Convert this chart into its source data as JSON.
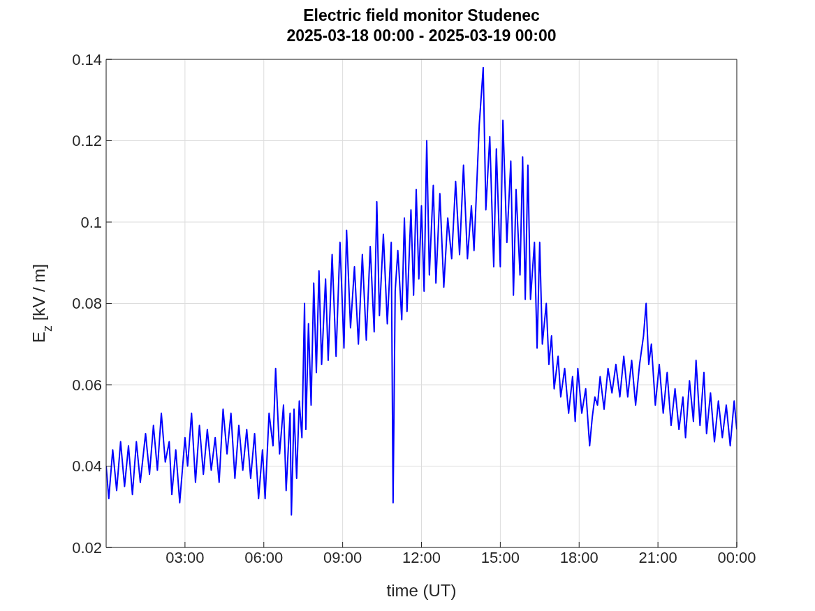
{
  "chart_data": {
    "type": "line",
    "title": "Electric field monitor Studenec",
    "subtitle": "2025-03-18 00:00 - 2025-03-19 00:00",
    "xlabel": "time (UT)",
    "ylabel": "E$_{z}$ [kV / m]",
    "x": [
      0.0,
      0.1,
      0.25,
      0.4,
      0.55,
      0.7,
      0.85,
      1.0,
      1.15,
      1.3,
      1.5,
      1.65,
      1.8,
      1.95,
      2.1,
      2.25,
      2.4,
      2.5,
      2.65,
      2.8,
      3.0,
      3.1,
      3.25,
      3.4,
      3.55,
      3.7,
      3.85,
      4.0,
      4.15,
      4.3,
      4.45,
      4.6,
      4.75,
      4.9,
      5.05,
      5.2,
      5.35,
      5.5,
      5.65,
      5.8,
      5.95,
      6.05,
      6.2,
      6.35,
      6.45,
      6.6,
      6.75,
      6.85,
      7.0,
      7.05,
      7.15,
      7.25,
      7.35,
      7.45,
      7.55,
      7.6,
      7.7,
      7.8,
      7.9,
      8.0,
      8.1,
      8.2,
      8.35,
      8.45,
      8.6,
      8.75,
      8.9,
      9.05,
      9.15,
      9.3,
      9.45,
      9.6,
      9.75,
      9.9,
      10.05,
      10.2,
      10.3,
      10.4,
      10.55,
      10.7,
      10.85,
      10.92,
      11.0,
      11.1,
      11.25,
      11.35,
      11.45,
      11.6,
      11.7,
      11.8,
      11.9,
      12.0,
      12.1,
      12.2,
      12.3,
      12.45,
      12.55,
      12.7,
      12.85,
      13.0,
      13.15,
      13.3,
      13.45,
      13.6,
      13.75,
      13.9,
      14.0,
      14.2,
      14.35,
      14.45,
      14.6,
      14.75,
      14.85,
      15.0,
      15.1,
      15.25,
      15.4,
      15.5,
      15.6,
      15.75,
      15.85,
      15.95,
      16.05,
      16.15,
      16.3,
      16.4,
      16.5,
      16.6,
      16.75,
      16.85,
      16.95,
      17.05,
      17.2,
      17.3,
      17.45,
      17.6,
      17.75,
      17.85,
      17.95,
      18.1,
      18.25,
      18.4,
      18.5,
      18.6,
      18.7,
      18.8,
      18.95,
      19.1,
      19.25,
      19.4,
      19.55,
      19.7,
      19.85,
      20.0,
      20.15,
      20.3,
      20.45,
      20.55,
      20.65,
      20.75,
      20.9,
      21.05,
      21.2,
      21.35,
      21.5,
      21.65,
      21.8,
      21.95,
      22.05,
      22.2,
      22.35,
      22.45,
      22.6,
      22.75,
      22.85,
      23.0,
      23.15,
      23.3,
      23.45,
      23.6,
      23.75,
      23.9,
      24.0
    ],
    "series": [
      {
        "color": "#0000ff",
        "values": [
          0.04,
          0.032,
          0.044,
          0.034,
          0.046,
          0.035,
          0.045,
          0.033,
          0.046,
          0.036,
          0.048,
          0.038,
          0.05,
          0.039,
          0.053,
          0.041,
          0.046,
          0.033,
          0.044,
          0.031,
          0.047,
          0.04,
          0.053,
          0.036,
          0.05,
          0.038,
          0.049,
          0.039,
          0.047,
          0.036,
          0.054,
          0.043,
          0.053,
          0.037,
          0.05,
          0.039,
          0.049,
          0.037,
          0.048,
          0.032,
          0.044,
          0.032,
          0.053,
          0.045,
          0.064,
          0.043,
          0.055,
          0.034,
          0.053,
          0.028,
          0.054,
          0.037,
          0.056,
          0.047,
          0.08,
          0.049,
          0.075,
          0.055,
          0.085,
          0.063,
          0.088,
          0.065,
          0.086,
          0.066,
          0.092,
          0.067,
          0.095,
          0.069,
          0.098,
          0.074,
          0.089,
          0.07,
          0.092,
          0.071,
          0.094,
          0.073,
          0.105,
          0.077,
          0.097,
          0.075,
          0.095,
          0.031,
          0.083,
          0.093,
          0.076,
          0.101,
          0.078,
          0.103,
          0.082,
          0.108,
          0.086,
          0.104,
          0.083,
          0.12,
          0.087,
          0.109,
          0.085,
          0.107,
          0.084,
          0.101,
          0.091,
          0.11,
          0.092,
          0.114,
          0.091,
          0.104,
          0.093,
          0.124,
          0.138,
          0.103,
          0.121,
          0.089,
          0.118,
          0.089,
          0.125,
          0.095,
          0.115,
          0.082,
          0.108,
          0.087,
          0.116,
          0.081,
          0.114,
          0.081,
          0.095,
          0.069,
          0.095,
          0.07,
          0.08,
          0.065,
          0.072,
          0.059,
          0.067,
          0.057,
          0.064,
          0.053,
          0.062,
          0.051,
          0.064,
          0.053,
          0.059,
          0.045,
          0.052,
          0.057,
          0.055,
          0.062,
          0.054,
          0.064,
          0.058,
          0.065,
          0.057,
          0.067,
          0.057,
          0.066,
          0.055,
          0.065,
          0.072,
          0.08,
          0.065,
          0.07,
          0.055,
          0.065,
          0.053,
          0.063,
          0.05,
          0.059,
          0.049,
          0.057,
          0.047,
          0.061,
          0.051,
          0.066,
          0.05,
          0.063,
          0.048,
          0.058,
          0.046,
          0.056,
          0.047,
          0.055,
          0.045,
          0.056,
          0.049
        ]
      }
    ],
    "xlim": [
      0,
      24
    ],
    "xticks": [
      {
        "value": 3,
        "label": "03:00"
      },
      {
        "value": 6,
        "label": "06:00"
      },
      {
        "value": 9,
        "label": "09:00"
      },
      {
        "value": 12,
        "label": "12:00"
      },
      {
        "value": 15,
        "label": "15:00"
      },
      {
        "value": 18,
        "label": "18:00"
      },
      {
        "value": 21,
        "label": "21:00"
      },
      {
        "value": 24,
        "label": "00:00"
      }
    ],
    "ylim": [
      0.02,
      0.14
    ],
    "yticks": [
      0.02,
      0.04,
      0.06,
      0.08,
      0.1,
      0.12,
      0.14
    ],
    "grid": true,
    "marker": "none",
    "line_style": "solid"
  }
}
